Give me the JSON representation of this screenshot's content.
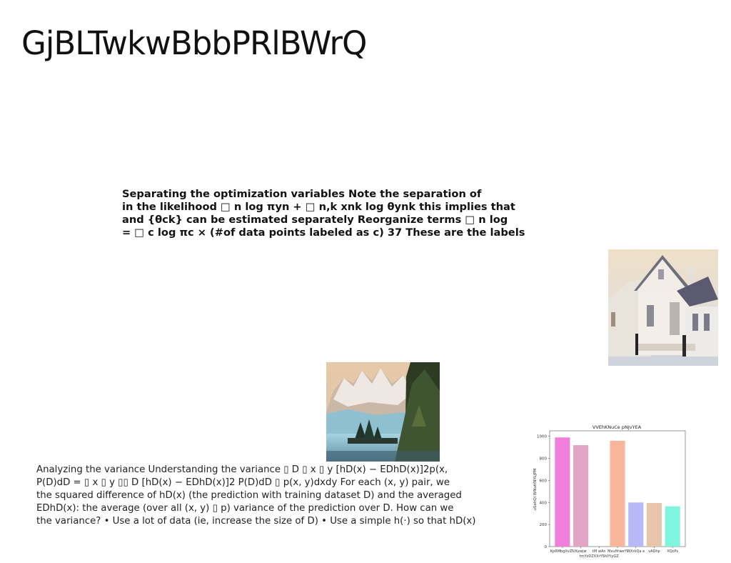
{
  "page": {
    "title": "GjBLTwkwBbbPRlBWrQ"
  },
  "paragraph1": {
    "lines": [
      "Separating the optimization variables Note the separation of",
      "in the likelihood □ n log πyn + □ n,k xnk log θynk this implies that",
      "and {θck} can be estimated separately Reorganize terms □ n log",
      "= □ c log πc × (#of data points labeled as c) 37 These are the labels"
    ]
  },
  "paragraph2": {
    "lines": [
      "Analyzing the variance Understanding the variance ▯ D ▯ x ▯ y [hD(x) − EDhD(x)]2p(x,",
      "P(D)dD = ▯ x ▯ y ▯▯ D [hD(x) − EDhD(x)]2 P(D)dD ▯ p(x, y)dxdy For each (x, y) pair, we",
      "the squared difference of hD(x) (the prediction with training dataset D) and the averaged",
      "EDhD(x): the average (over all (x, y) ▯ p) variance of the prediction over D. How can we",
      "the variance? • Use a lot of data (ie, increase the size of D) • Use a simple h(·) so that hD(x)"
    ]
  },
  "chart_data": {
    "type": "bar",
    "title": "VVEhKNuCe pNJvYEA",
    "ylabel": "uSehQi WNuttNYLJPM",
    "xlabel": "",
    "categories": [
      "KpRMbgXvZN",
      "Kxwjw",
      "tM wAn tmYzDZXXrYShlYtyGZ",
      "MxuHrweYl",
      "WXrkQa e",
      "vADhp",
      "XQcPs"
    ],
    "values": [
      990,
      920,
      0,
      960,
      400,
      395,
      365
    ],
    "colors": [
      "#f07fdc",
      "#e3a5c4",
      "#cccccc",
      "#f9b59a",
      "#b8b8f7",
      "#e6c5a8",
      "#7ff5de"
    ],
    "ylim": [
      0,
      1050
    ],
    "yticks": [
      0,
      200,
      400,
      600,
      800,
      1000
    ],
    "grid": false
  }
}
